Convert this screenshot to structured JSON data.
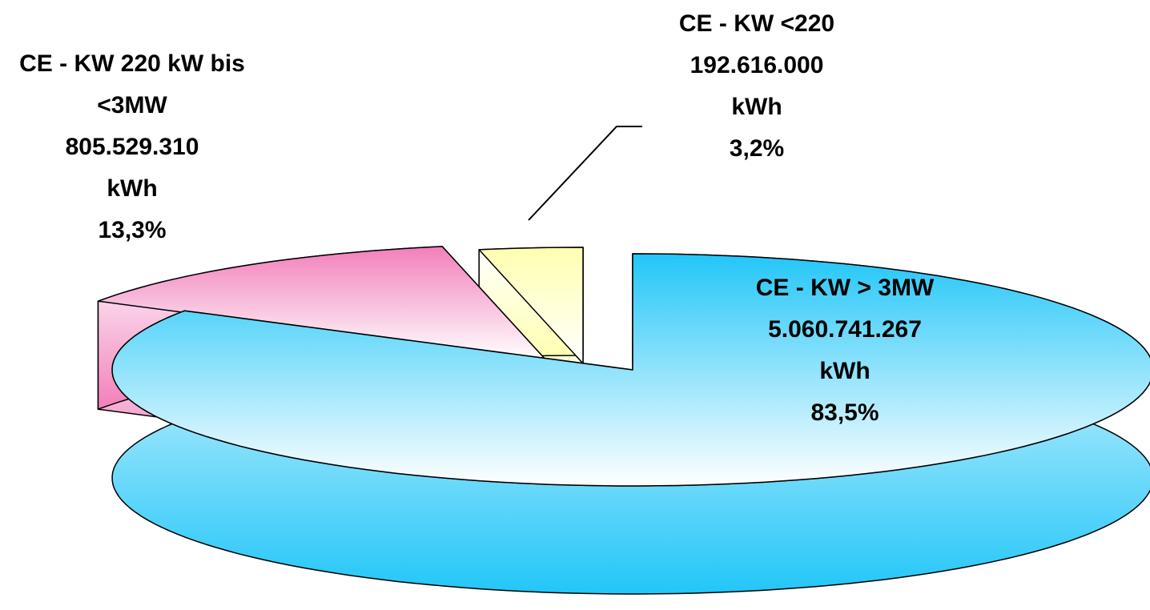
{
  "chart_data": {
    "type": "pie",
    "categories": [
      "CE - KW <220",
      "CE - KW 220 kW bis <3MW",
      "CE - KW > 3MW"
    ],
    "values": [
      3.2,
      13.3,
      83.5
    ],
    "value_labels": [
      "3,2%",
      "13,3%",
      "83,5%"
    ],
    "amounts": [
      192616000,
      805529310,
      5060741267
    ],
    "amount_labels": [
      "192.616.000",
      "805.529.310",
      "5.060.741.267"
    ],
    "unit": "kWh",
    "colors": [
      "#ffffb0",
      "#f27fba",
      "#22c6f8"
    ]
  }
}
